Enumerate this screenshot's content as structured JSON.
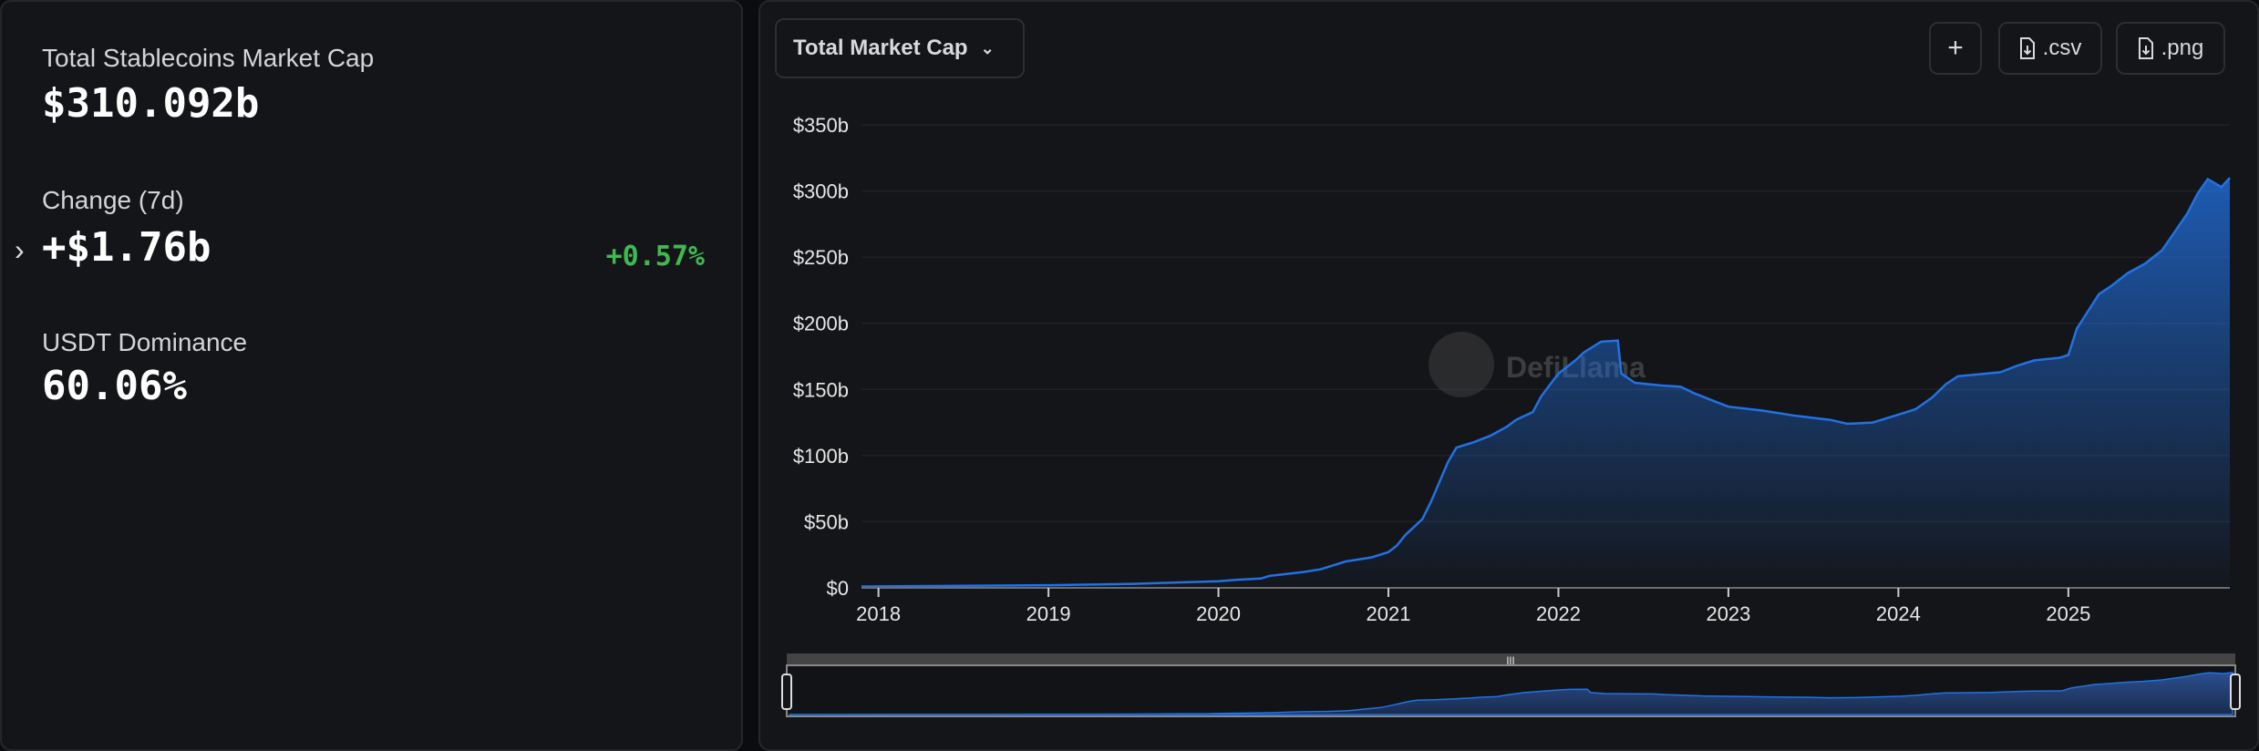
{
  "stats": {
    "total_label": "Total Stablecoins Market Cap",
    "total_value": "$310.092b",
    "change_label": "Change (7d)",
    "change_value": "+$1.76b",
    "change_pct": "+0.57%",
    "dominance_label": "USDT Dominance",
    "dominance_value": "60.06%"
  },
  "colors": {
    "accent": "#2172e5",
    "positive": "#3fb950"
  },
  "toolbar": {
    "dropdown_label": "Total Market Cap",
    "add_label": "+",
    "csv_label": ".csv",
    "png_label": ".png"
  },
  "watermark": "DefiLlama",
  "chart_data": {
    "type": "area",
    "title": "",
    "xlabel": "",
    "ylabel": "",
    "ylim": [
      0,
      350
    ],
    "xlim": [
      2017.9,
      2025.95
    ],
    "y_ticks": [
      "$0",
      "$50b",
      "$100b",
      "$150b",
      "$200b",
      "$250b",
      "$300b",
      "$350b"
    ],
    "x_ticks": [
      "2018",
      "2019",
      "2020",
      "2021",
      "2022",
      "2023",
      "2024",
      "2025"
    ],
    "grid": true,
    "series": [
      {
        "points": [
          [
            2017.9,
            1
          ],
          [
            2018.5,
            1.5
          ],
          [
            2019.0,
            2
          ],
          [
            2019.5,
            3
          ],
          [
            2020.0,
            5
          ],
          [
            2020.1,
            6
          ],
          [
            2020.25,
            7
          ],
          [
            2020.3,
            9
          ],
          [
            2020.5,
            12
          ],
          [
            2020.6,
            14
          ],
          [
            2020.75,
            20
          ],
          [
            2020.9,
            23
          ],
          [
            2021.0,
            27
          ],
          [
            2021.05,
            32
          ],
          [
            2021.1,
            40
          ],
          [
            2021.2,
            52
          ],
          [
            2021.25,
            65
          ],
          [
            2021.3,
            80
          ],
          [
            2021.35,
            95
          ],
          [
            2021.4,
            106
          ],
          [
            2021.5,
            110
          ],
          [
            2021.6,
            115
          ],
          [
            2021.7,
            122
          ],
          [
            2021.75,
            127
          ],
          [
            2021.85,
            133
          ],
          [
            2021.9,
            145
          ],
          [
            2022.0,
            162
          ],
          [
            2022.1,
            172
          ],
          [
            2022.15,
            178
          ],
          [
            2022.25,
            186
          ],
          [
            2022.35,
            187
          ],
          [
            2022.37,
            162
          ],
          [
            2022.45,
            155
          ],
          [
            2022.6,
            153
          ],
          [
            2022.72,
            152
          ],
          [
            2022.8,
            147
          ],
          [
            2022.9,
            142
          ],
          [
            2023.0,
            137
          ],
          [
            2023.2,
            134
          ],
          [
            2023.4,
            130
          ],
          [
            2023.6,
            127
          ],
          [
            2023.7,
            124
          ],
          [
            2023.85,
            125
          ],
          [
            2024.0,
            131
          ],
          [
            2024.1,
            135
          ],
          [
            2024.2,
            144
          ],
          [
            2024.28,
            154
          ],
          [
            2024.35,
            160
          ],
          [
            2024.6,
            163
          ],
          [
            2024.7,
            168
          ],
          [
            2024.8,
            172
          ],
          [
            2024.95,
            174
          ],
          [
            2025.0,
            176
          ],
          [
            2025.05,
            196
          ],
          [
            2025.1,
            206
          ],
          [
            2025.18,
            222
          ],
          [
            2025.25,
            228
          ],
          [
            2025.35,
            238
          ],
          [
            2025.45,
            245
          ],
          [
            2025.55,
            255
          ],
          [
            2025.62,
            268
          ],
          [
            2025.7,
            283
          ],
          [
            2025.76,
            298
          ],
          [
            2025.82,
            309
          ],
          [
            2025.9,
            303
          ],
          [
            2025.95,
            310
          ]
        ]
      }
    ]
  }
}
